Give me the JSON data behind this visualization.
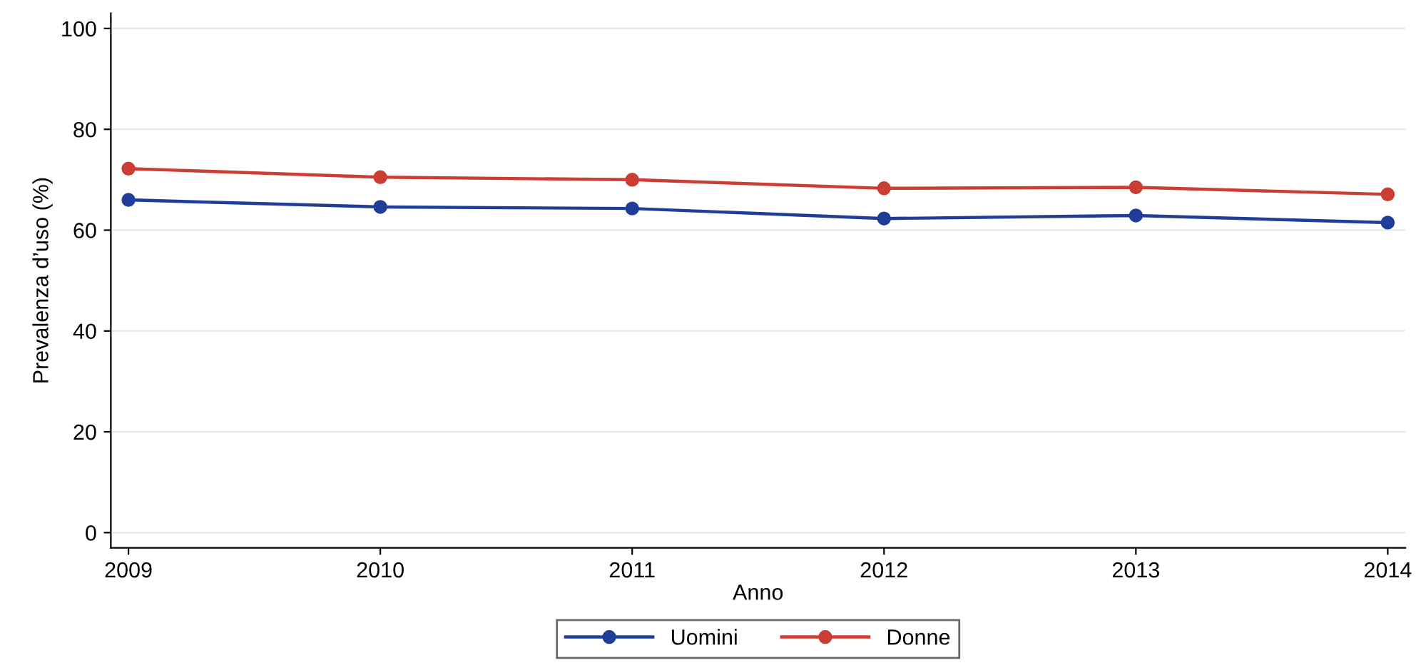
{
  "chart_data": {
    "type": "line",
    "xlabel": "Anno",
    "ylabel": "Prevalenza d’uso (%)",
    "x": [
      2009,
      2010,
      2011,
      2012,
      2013,
      2014
    ],
    "series": [
      {
        "name": "Uomini",
        "color": "#1f3d99",
        "values": [
          66.0,
          64.6,
          64.3,
          62.3,
          62.9,
          61.5
        ]
      },
      {
        "name": "Donne",
        "color": "#cc3d33",
        "values": [
          72.2,
          70.5,
          70.0,
          68.3,
          68.5,
          67.1
        ]
      }
    ],
    "xlim": [
      2008.93,
      2014.07
    ],
    "xticks": [
      2009,
      2010,
      2011,
      2012,
      2013,
      2014
    ],
    "ylim": [
      -3,
      103
    ],
    "yticks": [
      0,
      20,
      40,
      60,
      80,
      100
    ],
    "grid": "y",
    "legend": "bottom",
    "marker": "circle",
    "line_style": "solid"
  }
}
